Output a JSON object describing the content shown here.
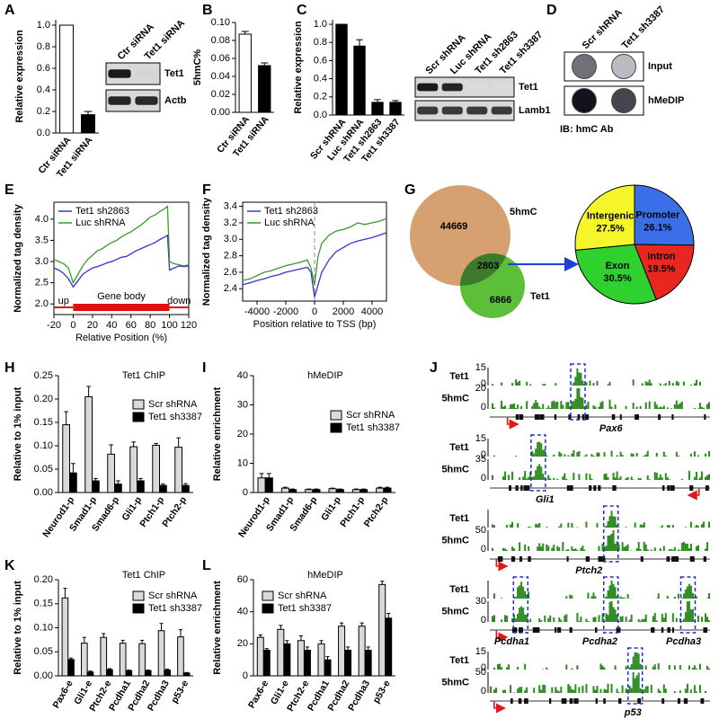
{
  "chart_data": [
    {
      "type": "bar",
      "label": "A",
      "ylabel": "Relative expression",
      "categories": [
        "Ctr siRNA",
        "Tet1 siRNA"
      ],
      "values": [
        1.0,
        0.17
      ],
      "errors": [
        0,
        0.03
      ],
      "colors": [
        "#ffffff",
        "#000000"
      ],
      "ylim": [
        0,
        1.05
      ],
      "yticks": [
        {
          "value": 0,
          "label": "0.0"
        },
        0.2,
        0.4,
        0.6,
        0.8,
        {
          "value": 1,
          "label": "1.0"
        }
      ]
    },
    {
      "type": "blot",
      "columns": [
        "Ctr siRNA",
        "Tet1 siRNA"
      ],
      "rows": [
        "Tet1",
        "Actb"
      ]
    },
    {
      "type": "bar",
      "label": "B",
      "ylabel": "5hmC%",
      "categories": [
        "Ctr siRNA",
        "Tet1 siRNA"
      ],
      "values": [
        0.087,
        0.052
      ],
      "errors": [
        0.003,
        0.003
      ],
      "colors": [
        "#ffffff",
        "#000000"
      ],
      "ylim": [
        0,
        0.1
      ],
      "yticks": [
        {
          "value": 0,
          "label": "0.00"
        },
        0.02,
        0.04,
        0.06,
        0.08,
        {
          "value": 0.1,
          "label": "0.10"
        }
      ]
    },
    {
      "type": "bar",
      "label": "C",
      "ylabel": "Relative expression",
      "categories": [
        "Scr shRNA",
        "Luc shRNA",
        "Tet1 sh2863",
        "Tet1 sh3387"
      ],
      "values": [
        1.0,
        0.76,
        0.14,
        0.14
      ],
      "errors": [
        0,
        0.07,
        0.03,
        0.02
      ],
      "colors": [
        "#000000",
        "#000000",
        "#000000",
        "#000000"
      ],
      "ylim": [
        0,
        1.05
      ],
      "yticks": [
        {
          "value": 0,
          "label": "0.0"
        },
        0.2,
        0.4,
        0.6,
        0.8,
        {
          "value": 1,
          "label": "1.0"
        }
      ]
    },
    {
      "type": "blot",
      "columns": [
        "Scr shRNA",
        "Luc shRNA",
        "Tet1 sh2863",
        "Tet1 sh3387"
      ],
      "rows": [
        "Tet1",
        "Lamb1"
      ]
    },
    {
      "type": "dotblot",
      "label": "D",
      "columns": [
        "Scr shRNA",
        "Tet1 sh3387"
      ],
      "rows": [
        "Input",
        "hMeDIP"
      ],
      "footer": "IB: hmC Ab"
    },
    {
      "type": "line",
      "label": "E",
      "xlabel": "Relative Position (%)",
      "ylabel": "Normalized tag density",
      "x": [
        -20,
        -15,
        -10,
        -5,
        0,
        5,
        10,
        15,
        20,
        25,
        30,
        35,
        40,
        45,
        50,
        55,
        60,
        65,
        70,
        75,
        80,
        85,
        90,
        95,
        98,
        100,
        105,
        110,
        115,
        120
      ],
      "series": [
        {
          "name": "Tet1 sh2863",
          "color": "#3535c8",
          "values": [
            2.85,
            2.8,
            2.72,
            2.6,
            2.4,
            2.55,
            2.7,
            2.78,
            2.85,
            2.88,
            2.92,
            2.97,
            3.0,
            3.05,
            3.1,
            3.12,
            3.18,
            3.25,
            3.3,
            3.35,
            3.4,
            3.45,
            3.52,
            3.58,
            3.62,
            2.8,
            2.85,
            2.9,
            2.88,
            2.9
          ]
        },
        {
          "name": "Luc shRNA",
          "color": "#3a9a2a",
          "values": [
            3.05,
            3.0,
            2.95,
            2.85,
            2.5,
            2.7,
            2.9,
            3.05,
            3.15,
            3.25,
            3.3,
            3.38,
            3.45,
            3.5,
            3.58,
            3.65,
            3.7,
            3.78,
            3.85,
            3.95,
            4.05,
            4.1,
            4.18,
            4.25,
            4.3,
            3.0,
            2.95,
            2.92,
            2.9,
            2.92
          ]
        }
      ],
      "xlim": [
        -20,
        120
      ],
      "xticks": [
        -20,
        0,
        20,
        40,
        60,
        80,
        100,
        120
      ],
      "ylim": [
        1.75,
        4.4
      ],
      "yticks": [
        {
          "value": 2,
          "label": "2.0"
        },
        2.5,
        {
          "value": 3,
          "label": "3.0"
        },
        3.5,
        {
          "value": 4,
          "label": "4.0"
        }
      ],
      "regions": [
        {
          "label": "up",
          "range": [
            -20,
            0
          ]
        },
        {
          "label": "Gene body",
          "range": [
            0,
            100
          ]
        },
        {
          "label": "down",
          "range": [
            100,
            120
          ]
        }
      ]
    },
    {
      "type": "line",
      "label": "F",
      "xlabel": "Position relative to TSS (bp)",
      "ylabel": "Normalized tag density",
      "x": [
        -5000,
        -4500,
        -4000,
        -3500,
        -3000,
        -2500,
        -2000,
        -1500,
        -1000,
        -500,
        -250,
        0,
        250,
        500,
        1000,
        1500,
        2000,
        2500,
        3000,
        3500,
        4000,
        4500,
        5000
      ],
      "series": [
        {
          "name": "Tet1 sh2863",
          "color": "#3535c8",
          "values": [
            2.45,
            2.47,
            2.5,
            2.52,
            2.55,
            2.57,
            2.6,
            2.62,
            2.64,
            2.66,
            2.6,
            2.3,
            2.45,
            2.6,
            2.75,
            2.85,
            2.9,
            2.95,
            2.98,
            3.0,
            3.02,
            3.05,
            3.08
          ]
        },
        {
          "name": "Luc shRNA",
          "color": "#3a9a2a",
          "values": [
            2.5,
            2.52,
            2.56,
            2.6,
            2.62,
            2.65,
            2.68,
            2.7,
            2.72,
            2.75,
            2.65,
            2.45,
            2.8,
            2.95,
            3.05,
            3.1,
            3.12,
            3.15,
            3.2,
            3.18,
            3.2,
            3.22,
            3.25
          ]
        }
      ],
      "xlim": [
        -5000,
        5000
      ],
      "xticks": [
        -4000,
        -2000,
        0,
        2000,
        4000
      ],
      "ylim": [
        2.25,
        3.45
      ],
      "yticks": [
        2.4,
        2.6,
        2.8,
        {
          "value": 3,
          "label": "3.0"
        },
        3.2,
        3.4
      ],
      "vline": 0
    },
    {
      "type": "venn",
      "label": "G",
      "sets": [
        {
          "name": "5hmC",
          "count": 44669,
          "color": "#d6a070"
        },
        {
          "name": "Tet1",
          "count": 6866,
          "color": "#5cbf3a"
        }
      ],
      "overlap": 2803,
      "overlap_color": "#3d7a2c"
    },
    {
      "type": "pie",
      "categories": [
        "Promoter",
        "Intron",
        "Exon",
        "Intergenic"
      ],
      "values": [
        26.1,
        19.5,
        30.5,
        27.5
      ],
      "value_labels": [
        "26.1%",
        "19.5%",
        "30.5%",
        "27.5%"
      ],
      "colors": [
        "#3a6fe8",
        "#e8281e",
        "#2ed12e",
        "#f5f52a"
      ]
    },
    {
      "type": "bar",
      "label": "H",
      "title": "Tet1 ChIP",
      "ylabel": "Relative to 1% input",
      "categories": [
        "Neurod1-p",
        "Smad1-p",
        "Smad6-p",
        "Gli1-p",
        "Ptch1-p",
        "Ptch2-p"
      ],
      "series": [
        {
          "name": "Scr shRNA",
          "color": "#d9d9d9",
          "values": [
            0.145,
            0.205,
            0.082,
            0.098,
            0.101,
            0.097
          ],
          "errors": [
            0.028,
            0.022,
            0.02,
            0.01,
            0.004,
            0.02
          ]
        },
        {
          "name": "Tet1 sh3387",
          "color": "#000000",
          "values": [
            0.042,
            0.025,
            0.018,
            0.025,
            0.015,
            0.015
          ],
          "errors": [
            0.02,
            0.005,
            0.007,
            0.005,
            0.003,
            0.004
          ]
        }
      ],
      "ylim": [
        0,
        0.25
      ],
      "yticks": [
        {
          "value": 0,
          "label": "0.00"
        },
        0.05,
        {
          "value": 0.1,
          "label": "0.10"
        },
        0.15,
        {
          "value": 0.2,
          "label": "0.20"
        },
        0.25
      ]
    },
    {
      "type": "bar",
      "label": "I",
      "title": "hMeDIP",
      "ylabel": "Relative enrichment",
      "categories": [
        "Neurod1-p",
        "Smad1-p",
        "Smad6-p",
        "Gli1-p",
        "Ptch1-p",
        "Ptch2-p"
      ],
      "series": [
        {
          "name": "Scr shRNA",
          "color": "#d9d9d9",
          "values": [
            5,
            1.5,
            1,
            1.3,
            1,
            1.5
          ],
          "errors": [
            1.5,
            0.3,
            0.2,
            0.2,
            0.2,
            0.3
          ]
        },
        {
          "name": "Tet1 sh3387",
          "color": "#000000",
          "values": [
            5,
            1,
            1,
            1,
            1,
            1.5
          ],
          "errors": [
            1.5,
            0.2,
            0.2,
            0.2,
            0.2,
            0.3
          ]
        }
      ],
      "ylim": [
        0,
        40
      ],
      "yticks": [
        0,
        10,
        20,
        30,
        40
      ]
    },
    {
      "type": "tracks",
      "label": "J",
      "track_names": [
        "Tet1",
        "5hmC"
      ],
      "groups": [
        {
          "genes": [
            "Pax6"
          ],
          "tet1_ticks": [
            15,
            0
          ],
          "hmc_ticks": [
            20,
            0
          ]
        },
        {
          "genes": [
            "Gli1"
          ],
          "tet1_ticks": [
            15,
            0
          ],
          "hmc_ticks": [
            35,
            0
          ]
        },
        {
          "genes": [
            "Ptch2"
          ],
          "hmc_ticks": [
            50,
            0
          ]
        },
        {
          "genes": [
            "Pcdha1",
            "Pcdha2",
            "Pcdha3"
          ],
          "hmc_ticks": [
            30,
            0
          ]
        },
        {
          "genes": [
            "p53"
          ],
          "tet1_ticks": [
            15,
            0
          ],
          "hmc_ticks": [
            50,
            0
          ]
        }
      ]
    },
    {
      "type": "bar",
      "label": "K",
      "title": "Tet1 ChIP",
      "ylabel": "Relative to 1% input",
      "categories": [
        "Pax6-e",
        "Gli1-e",
        "Ptch2-e",
        "Pcdha1",
        "Pcdha2",
        "Pcdha3",
        "p53-e"
      ],
      "series": [
        {
          "name": "Scr shRNA",
          "color": "#d9d9d9",
          "values": [
            0.162,
            0.068,
            0.08,
            0.068,
            0.067,
            0.094,
            0.081
          ],
          "errors": [
            0.02,
            0.012,
            0.008,
            0.006,
            0.007,
            0.015,
            0.015
          ]
        },
        {
          "name": "Tet1 sh3387",
          "color": "#000000",
          "values": [
            0.034,
            0.008,
            0.013,
            0.011,
            0.011,
            0.012,
            0.006
          ],
          "errors": [
            0.003,
            0.002,
            0.002,
            0.001,
            0.001,
            0.002,
            0.001
          ]
        }
      ],
      "ylim": [
        0,
        0.2
      ],
      "yticks": [
        {
          "value": 0,
          "label": "0.00"
        },
        0.05,
        {
          "value": 0.1,
          "label": "0.10"
        },
        0.15,
        {
          "value": 0.2,
          "label": "0.20"
        }
      ]
    },
    {
      "type": "bar",
      "label": "L",
      "title": "hMeDIP",
      "ylabel": "Relative enrichment",
      "categories": [
        "Pax6-e",
        "Gli1-e",
        "Ptch2-e",
        "Pcdha1",
        "Pcdha2",
        "Pcdha3",
        "p53-e"
      ],
      "series": [
        {
          "name": "Scr shRNA",
          "color": "#d9d9d9",
          "values": [
            24,
            29,
            22,
            20,
            31,
            31,
            57
          ],
          "errors": [
            1.5,
            2.5,
            3,
            2,
            2,
            2,
            2
          ]
        },
        {
          "name": "Tet1 sh3387",
          "color": "#000000",
          "values": [
            16,
            20,
            16,
            10,
            16,
            16,
            36
          ],
          "errors": [
            1,
            2,
            2,
            2,
            2,
            2,
            3
          ]
        }
      ],
      "ylim": [
        0,
        60
      ],
      "yticks": [
        0,
        20,
        40,
        60
      ]
    }
  ]
}
